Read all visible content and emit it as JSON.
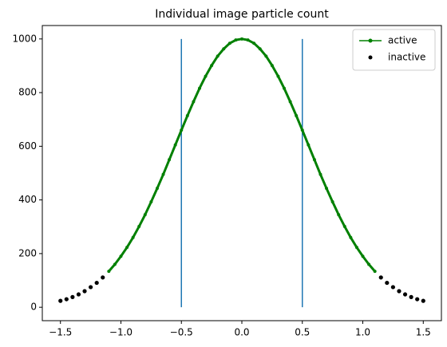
{
  "chart_data": {
    "type": "line",
    "title": "Individual image particle count",
    "series": [
      {
        "name": "active",
        "color": "#008000",
        "marker": true,
        "line": true,
        "x": [
          -1.1,
          -1.05,
          -1.0,
          -0.95,
          -0.9,
          -0.85,
          -0.8,
          -0.75,
          -0.7,
          -0.65,
          -0.6,
          -0.55,
          -0.5,
          -0.45,
          -0.4,
          -0.35,
          -0.3,
          -0.25,
          -0.2,
          -0.15,
          -0.1,
          -0.05,
          0,
          0.05,
          0.1,
          0.15,
          0.2,
          0.25,
          0.3,
          0.35,
          0.4,
          0.45,
          0.5,
          0.55,
          0.6,
          0.65,
          0.7,
          0.75,
          0.8,
          0.85,
          0.9,
          0.95,
          1.0,
          1.05,
          1.1
        ],
        "values": [
          134,
          160,
          190,
          223,
          260,
          301,
          345,
          393,
          443,
          495,
          550,
          605,
          660,
          714,
          766,
          816,
          861,
          901,
          936,
          963,
          984,
          996,
          1000,
          996,
          984,
          963,
          936,
          901,
          861,
          816,
          766,
          714,
          660,
          605,
          550,
          495,
          443,
          393,
          345,
          301,
          260,
          223,
          190,
          160,
          134
        ]
      },
      {
        "name": "inactive",
        "color": "#000000",
        "marker": true,
        "line": false,
        "x": [
          -1.5,
          -1.45,
          -1.4,
          -1.35,
          -1.3,
          -1.25,
          -1.2,
          -1.15,
          1.15,
          1.2,
          1.25,
          1.3,
          1.35,
          1.4,
          1.45,
          1.5
        ],
        "values": [
          24,
          30,
          38,
          48,
          60,
          75,
          91,
          111,
          111,
          91,
          75,
          60,
          48,
          38,
          30,
          24
        ]
      }
    ],
    "vlines": {
      "x": [
        -0.5,
        0.5
      ],
      "ymin": 0,
      "ymax": 1000,
      "color": "#1f77b4"
    },
    "xlim": [
      -1.65,
      1.65
    ],
    "ylim": [
      -50,
      1050
    ],
    "xticks": [
      {
        "value": -1.5,
        "label": "−1.5"
      },
      {
        "value": -1.0,
        "label": "−1.0"
      },
      {
        "value": -0.5,
        "label": "−0.5"
      },
      {
        "value": 0,
        "label": "0.0"
      },
      {
        "value": 0.5,
        "label": "0.5"
      },
      {
        "value": 1.0,
        "label": "1.0"
      },
      {
        "value": 1.5,
        "label": "1.5"
      }
    ],
    "yticks": [
      0,
      200,
      400,
      600,
      800,
      1000
    ],
    "legend": "upper right",
    "grid": false
  }
}
